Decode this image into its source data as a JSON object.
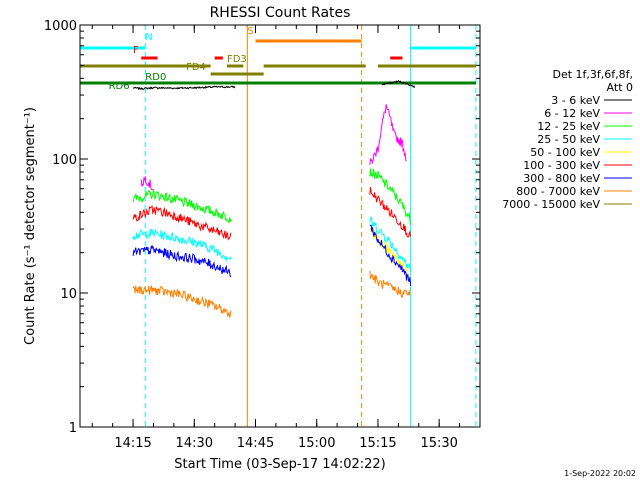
{
  "chart_data": {
    "type": "line",
    "title": "RHESSI Count Rates",
    "xlabel": "Start Time (03-Sep-17 14:02:22)",
    "ylabel": "Count Rate (s⁻¹ detector segment⁻¹)",
    "ylog": true,
    "ylim": [
      1,
      1000
    ],
    "xlim": [
      "14:02",
      "15:40"
    ],
    "x_tick_labels": [
      "14:15",
      "14:30",
      "14:45",
      "15:00",
      "15:15",
      "15:30"
    ],
    "y_tick_labels": [
      "1",
      "10",
      "100",
      "1000"
    ],
    "grid": false,
    "legend_position": "right",
    "legend_header": [
      "Det 1f,3f,6f,8f,",
      "Att 0"
    ],
    "timestamp": "1-Sep-2022 20:02",
    "series": [
      {
        "name": "3 - 6 keV",
        "color": "#000000",
        "segments": [
          {
            "x": [
              "14:15",
              "14:17",
              "14:20",
              "14:25",
              "14:30",
              "14:35",
              "14:40"
            ],
            "y": [
              340,
              335,
              340,
              338,
              340,
              345,
              345
            ]
          },
          {
            "x": [
              "15:16",
              "15:18",
              "15:20",
              "15:22",
              "15:24"
            ],
            "y": [
              360,
              370,
              380,
              365,
              345
            ]
          }
        ]
      },
      {
        "name": "6 - 12 keV",
        "color": "#ff00ff",
        "segments": [
          {
            "x": [
              "14:17",
              "14:18",
              "14:20"
            ],
            "y": [
              65,
              72,
              60
            ]
          },
          {
            "x": [
              "15:13",
              "15:15",
              "15:16",
              "15:17",
              "15:18",
              "15:19",
              "15:21",
              "15:22"
            ],
            "y": [
              90,
              120,
              180,
              250,
              200,
              150,
              130,
              100
            ]
          }
        ]
      },
      {
        "name": "12 - 25 keV",
        "color": "#00ff00",
        "segments": [
          {
            "x": [
              "14:15",
              "14:20",
              "14:25",
              "14:30",
              "14:35",
              "14:39"
            ],
            "y": [
              50,
              55,
              50,
              45,
              40,
              36
            ]
          },
          {
            "x": [
              "15:13",
              "15:15",
              "15:18",
              "15:21",
              "15:23"
            ],
            "y": [
              80,
              75,
              60,
              45,
              35
            ]
          }
        ]
      },
      {
        "name": "25 - 50 keV",
        "color": "#00ffff",
        "segments": [
          {
            "x": [
              "14:15",
              "14:20",
              "14:25",
              "14:30",
              "14:35",
              "14:39"
            ],
            "y": [
              27,
              28,
              26,
              24,
              21,
              18
            ]
          },
          {
            "x": [
              "15:13",
              "15:15",
              "15:18",
              "15:21",
              "15:23"
            ],
            "y": [
              35,
              30,
              24,
              18,
              15
            ]
          }
        ]
      },
      {
        "name": "50 - 100 keV",
        "color": "#ffff00",
        "segments": [
          {
            "x": [
              "15:13",
              "15:15",
              "15:18",
              "15:21",
              "15:23"
            ],
            "y": [
              30,
              25,
              20,
              16,
              13
            ]
          }
        ]
      },
      {
        "name": "100 - 300 keV",
        "color": "#ff0000",
        "segments": [
          {
            "x": [
              "14:15",
              "14:20",
              "14:25",
              "14:30",
              "14:35",
              "14:39"
            ],
            "y": [
              36,
              42,
              38,
              33,
              29,
              26
            ]
          },
          {
            "x": [
              "15:13",
              "15:15",
              "15:18",
              "15:21",
              "15:23"
            ],
            "y": [
              58,
              50,
              40,
              32,
              26
            ]
          }
        ]
      },
      {
        "name": "300 - 800 keV",
        "color": "#0000ff",
        "segments": [
          {
            "x": [
              "14:15",
              "14:20",
              "14:25",
              "14:30",
              "14:35",
              "14:39"
            ],
            "y": [
              20,
              21,
              19,
              18,
              16,
              14
            ]
          },
          {
            "x": [
              "15:13",
              "15:15",
              "15:18",
              "15:21",
              "15:23"
            ],
            "y": [
              32,
              25,
              19,
              15,
              12
            ]
          }
        ]
      },
      {
        "name": "800 - 7000 keV",
        "color": "#ff8000",
        "segments": [
          {
            "x": [
              "14:15",
              "14:20",
              "14:25",
              "14:30",
              "14:35",
              "14:39"
            ],
            "y": [
              10.5,
              10.5,
              10,
              9,
              8,
              7
            ]
          },
          {
            "x": [
              "15:13",
              "15:15",
              "15:18",
              "15:21",
              "15:23"
            ],
            "y": [
              14,
              12,
              11,
              10,
              10
            ]
          }
        ]
      },
      {
        "name": "7000 - 15000 keV",
        "color": "#808000",
        "segments": []
      }
    ],
    "flags": [
      {
        "label": "N",
        "color": "#00ffff",
        "y": 48,
        "label_y": 40,
        "label_x": "14:18",
        "spans": [
          [
            "14:02",
            "14:18"
          ],
          [
            "15:23",
            "15:39"
          ]
        ]
      },
      {
        "label": "S",
        "color": "#ff8000",
        "y": 41,
        "label_y": 34,
        "label_x": "14:43",
        "spans": [
          [
            "14:45",
            "15:11"
          ]
        ]
      },
      {
        "label": "F",
        "color": "#ff0000",
        "y": 58,
        "label_y": 53,
        "label_x": "14:15",
        "spans": [
          [
            "14:17",
            "14:21"
          ],
          [
            "14:35",
            "14:37"
          ],
          [
            "15:18",
            "15:21"
          ]
        ]
      },
      {
        "label": "FD3",
        "color": "#808000",
        "y": 66,
        "label_y": 62,
        "label_x": "14:38",
        "spans": [
          [
            "14:02",
            "14:34"
          ],
          [
            "14:38",
            "14:42"
          ],
          [
            "14:47",
            "15:12"
          ],
          [
            "15:15",
            "15:39"
          ]
        ]
      },
      {
        "label": "FD4",
        "color": "#808000",
        "y": 74,
        "label_y": 70,
        "label_x": "14:28",
        "spans": [
          [
            "14:34",
            "14:47"
          ]
        ]
      },
      {
        "label": "RD0",
        "color": "#008000",
        "y": 83,
        "label_y": 80,
        "label_x": "14:18",
        "spans": [
          [
            "14:02",
            "15:39"
          ]
        ]
      },
      {
        "label": "RD6",
        "color": "#008000",
        "y": 83,
        "label_y": 89,
        "label_x": "14:09",
        "spans": [
          [
            "14:02",
            "15:39"
          ]
        ]
      }
    ],
    "vlines": [
      {
        "x": "14:02",
        "color": "#00ffff",
        "dashed": false
      },
      {
        "x": "14:18",
        "color": "#00ffff",
        "dashed": true
      },
      {
        "x": "14:43",
        "color": "#ff8000",
        "dashed": false
      },
      {
        "x": "15:11",
        "color": "#ff8000",
        "dashed": true
      },
      {
        "x": "15:23",
        "color": "#00ffff",
        "dashed": false
      },
      {
        "x": "15:39",
        "color": "#00ffff",
        "dashed": true
      }
    ]
  }
}
